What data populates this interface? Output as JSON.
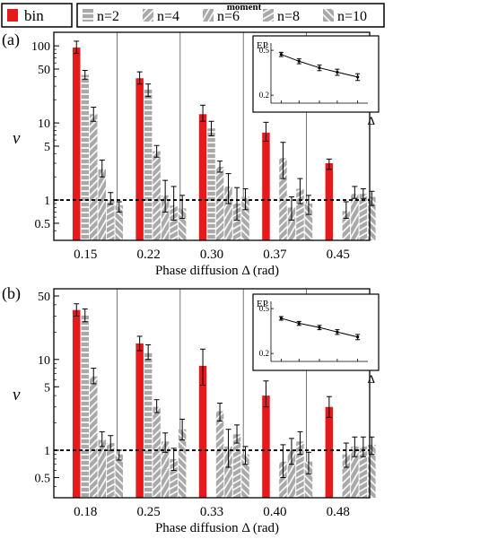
{
  "legend": {
    "bin_label": "bin",
    "moment_title": "moment",
    "moment_labels": [
      "n=2",
      "n=4",
      "n=6",
      "n=8",
      "n=10"
    ]
  },
  "colors": {
    "bin": "#e41a1c",
    "moment_fill": "#a9a9a9",
    "moment_stripe": "#ffffff",
    "grid": "#555555"
  },
  "chart_data": [
    {
      "type": "bar",
      "panel_label": "(a)",
      "ylabel": "ν",
      "xlabel": "Phase diffusion Δ (rad)",
      "yscale": "log",
      "ylim": [
        0.3,
        150
      ],
      "yticks": [
        100,
        50,
        10,
        5,
        1,
        0.5
      ],
      "ytick_labels": [
        "100",
        "50",
        "10",
        "5",
        "1",
        "0.5"
      ],
      "reference_line": 1,
      "categories": [
        "0.15",
        "0.22",
        "0.30",
        "0.37",
        "0.45"
      ],
      "series": [
        {
          "name": "bin",
          "values": [
            95,
            38,
            13,
            7.5,
            3.0
          ],
          "err": [
            [
              80,
              115
            ],
            [
              32,
              46
            ],
            [
              10.5,
              17
            ],
            [
              5.8,
              10.2
            ],
            [
              2.5,
              3.4
            ]
          ]
        },
        {
          "name": "n=2",
          "values": [
            42,
            27,
            8.5,
            null,
            null
          ],
          "err": [
            [
              37,
              48
            ],
            [
              22,
              32
            ],
            [
              6.8,
              10.5
            ],
            null,
            null
          ]
        },
        {
          "name": "n=4",
          "values": [
            13,
            4.3,
            2.7,
            3.5,
            0.72
          ],
          "err": [
            [
              10.5,
              16
            ],
            [
              3.6,
              5.1
            ],
            [
              2.3,
              3.2
            ],
            [
              1.9,
              5.6
            ],
            [
              0.58,
              0.95
            ]
          ]
        },
        {
          "name": "n=6",
          "values": [
            2.5,
            1.15,
            1.5,
            0.8,
            1.2
          ],
          "err": [
            [
              2.0,
              3.3
            ],
            [
              0.7,
              1.8
            ],
            [
              0.9,
              2.2
            ],
            [
              0.55,
              1.1
            ],
            [
              1.05,
              1.5
            ]
          ]
        },
        {
          "name": "n=8",
          "values": [
            1.0,
            0.85,
            0.9,
            1.4,
            1.2
          ],
          "err": [
            [
              0.88,
              1.25
            ],
            [
              0.55,
              1.5
            ],
            [
              0.55,
              1.45
            ],
            [
              0.9,
              1.9
            ],
            [
              1.05,
              1.4
            ]
          ]
        },
        {
          "name": "n=10",
          "values": [
            0.85,
            0.78,
            1.1,
            0.9,
            1.1
          ],
          "err": [
            [
              0.7,
              0.95
            ],
            [
              0.58,
              1.15
            ],
            [
              0.75,
              1.4
            ],
            [
              0.65,
              1.15
            ],
            [
              0.85,
              1.3
            ]
          ]
        }
      ],
      "inset": {
        "type": "line",
        "ylabel": "EP",
        "xlabel": "Δ",
        "yticks": [
          0.5,
          0.2
        ],
        "ytick_labels": [
          "0.5",
          "0.2"
        ],
        "x": [
          0.15,
          0.22,
          0.3,
          0.37,
          0.45
        ],
        "y": [
          0.46,
          0.4,
          0.35,
          0.32,
          0.29
        ],
        "err": [
          0.02,
          0.02,
          0.02,
          0.02,
          0.02
        ]
      }
    },
    {
      "type": "bar",
      "panel_label": "(b)",
      "ylabel": "ν",
      "xlabel": "Phase diffusion Δ (rad)",
      "yscale": "log",
      "ylim": [
        0.3,
        60
      ],
      "yticks": [
        50,
        10,
        5,
        1,
        0.5
      ],
      "ytick_labels": [
        "50",
        "10",
        "5",
        "1",
        "0.5"
      ],
      "reference_line": 1,
      "categories": [
        "0.18",
        "0.25",
        "0.33",
        "0.40",
        "0.48"
      ],
      "series": [
        {
          "name": "bin",
          "values": [
            35,
            15,
            8.5,
            4.0,
            3.0
          ],
          "err": [
            [
              30,
              41
            ],
            [
              12.5,
              18
            ],
            [
              5.2,
              13
            ],
            [
              3.0,
              5.8
            ],
            [
              2.3,
              3.9
            ]
          ]
        },
        {
          "name": "n=2",
          "values": [
            31,
            12,
            null,
            null,
            null
          ],
          "err": [
            [
              26,
              36
            ],
            [
              10,
              14.5
            ],
            null,
            null,
            null
          ]
        },
        {
          "name": "n=4",
          "values": [
            6.5,
            3.0,
            2.7,
            0.75,
            0.9
          ],
          "err": [
            [
              5.4,
              8.0
            ],
            [
              2.6,
              3.6
            ],
            [
              2.1,
              3.3
            ],
            [
              0.5,
              1.15
            ],
            [
              0.65,
              1.2
            ]
          ]
        },
        {
          "name": "n=6",
          "values": [
            1.3,
            1.25,
            1.1,
            1.0,
            1.1
          ],
          "err": [
            [
              1.1,
              1.6
            ],
            [
              0.95,
              1.55
            ],
            [
              0.65,
              1.7
            ],
            [
              0.7,
              1.35
            ],
            [
              0.85,
              1.4
            ]
          ]
        },
        {
          "name": "n=8",
          "values": [
            1.2,
            0.8,
            1.5,
            1.25,
            1.1
          ],
          "err": [
            [
              1.0,
              1.45
            ],
            [
              0.6,
              1.05
            ],
            [
              1.2,
              1.9
            ],
            [
              0.9,
              1.6
            ],
            [
              0.85,
              1.4
            ]
          ]
        },
        {
          "name": "n=10",
          "values": [
            0.9,
            1.7,
            0.9,
            0.75,
            1.15
          ],
          "err": [
            [
              0.78,
              1.0
            ],
            [
              1.3,
              2.2
            ],
            [
              0.7,
              1.1
            ],
            [
              0.55,
              0.95
            ],
            [
              0.9,
              1.4
            ]
          ]
        }
      ],
      "inset": {
        "type": "line",
        "ylabel": "EP",
        "xlabel": "Δ",
        "yticks": [
          0.5,
          0.2
        ],
        "ytick_labels": [
          "0.5",
          "0.2"
        ],
        "x": [
          0.18,
          0.25,
          0.33,
          0.4,
          0.48
        ],
        "y": [
          0.41,
          0.37,
          0.34,
          0.31,
          0.28
        ],
        "err": [
          0.015,
          0.015,
          0.015,
          0.015,
          0.015
        ]
      }
    }
  ]
}
